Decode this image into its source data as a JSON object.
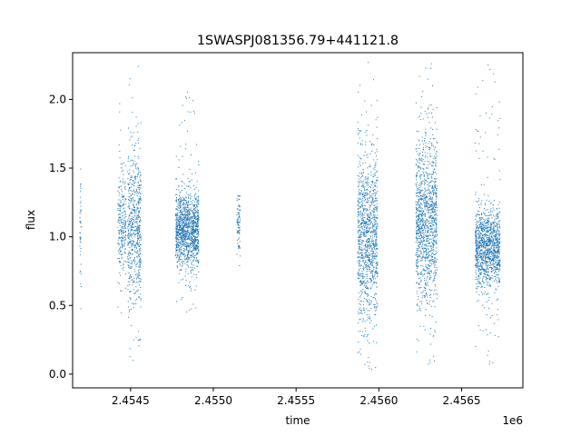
{
  "chart_data": {
    "type": "scatter",
    "title": "1SWASPJ081356.79+441121.8",
    "xlabel": "time",
    "ylabel": "flux",
    "x_offset_label": "1e6",
    "xlim": [
      2454150,
      2456870
    ],
    "ylim": [
      -0.1,
      2.34
    ],
    "x_ticks": [
      2454500,
      2455000,
      2455500,
      2456000,
      2456500
    ],
    "x_tick_labels": [
      "2.4545",
      "2.4550",
      "2.4555",
      "2.4560",
      "2.4565"
    ],
    "y_ticks": [
      0.0,
      0.5,
      1.0,
      1.5,
      2.0
    ],
    "y_tick_labels": [
      "0.0",
      "0.5",
      "1.0",
      "1.5",
      "2.0"
    ],
    "marker_color": "#1f77b4",
    "grid": false,
    "legend": "none",
    "clusters": [
      {
        "x_start": 2454190,
        "x_end": 2454200,
        "flux_center": 1.05,
        "flux_spread": 0.22,
        "flux_min": 0.48,
        "flux_max": 1.52,
        "density": 0.05
      },
      {
        "x_start": 2454420,
        "x_end": 2454470,
        "flux_center": 1.07,
        "flux_spread": 0.2,
        "flux_min": 0.45,
        "flux_max": 2.02,
        "density": 0.45
      },
      {
        "x_start": 2454480,
        "x_end": 2454560,
        "flux_center": 1.05,
        "flux_spread": 0.28,
        "flux_min": 0.05,
        "flux_max": 2.3,
        "density": 0.8
      },
      {
        "x_start": 2454770,
        "x_end": 2454910,
        "flux_center": 1.05,
        "flux_spread": 0.13,
        "flux_min": 0.45,
        "flux_max": 2.06,
        "density": 1.0
      },
      {
        "x_start": 2455140,
        "x_end": 2455160,
        "flux_center": 1.07,
        "flux_spread": 0.12,
        "flux_min": 0.45,
        "flux_max": 1.3,
        "density": 0.25
      },
      {
        "x_start": 2455870,
        "x_end": 2455990,
        "flux_center": 1.0,
        "flux_spread": 0.3,
        "flux_min": 0.0,
        "flux_max": 2.3,
        "density": 1.0
      },
      {
        "x_start": 2456220,
        "x_end": 2456350,
        "flux_center": 1.12,
        "flux_spread": 0.3,
        "flux_min": 0.05,
        "flux_max": 2.3,
        "density": 1.0
      },
      {
        "x_start": 2456580,
        "x_end": 2456730,
        "flux_center": 0.92,
        "flux_spread": 0.14,
        "flux_min": 0.05,
        "flux_max": 2.28,
        "density": 0.9
      }
    ]
  }
}
